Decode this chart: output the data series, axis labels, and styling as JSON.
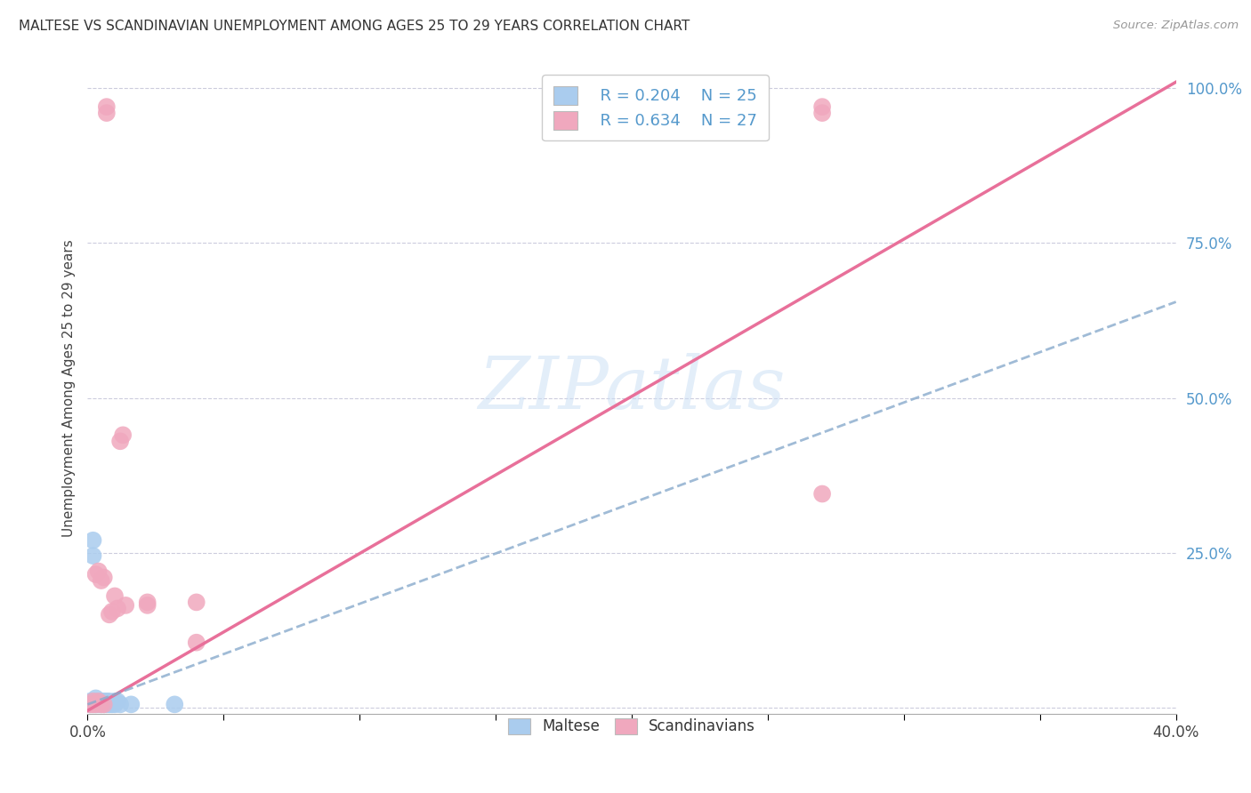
{
  "title": "MALTESE VS SCANDINAVIAN UNEMPLOYMENT AMONG AGES 25 TO 29 YEARS CORRELATION CHART",
  "source": "Source: ZipAtlas.com",
  "ylabel": "Unemployment Among Ages 25 to 29 years",
  "legend_r_maltese": "R = 0.204",
  "legend_n_maltese": "N = 25",
  "legend_r_scand": "R = 0.634",
  "legend_n_scand": "N = 27",
  "maltese_color": "#aaccee",
  "scand_color": "#f0a8be",
  "maltese_line_color": "#88aacc",
  "scand_line_color": "#e8709a",
  "axis_label_color": "#5599cc",
  "watermark_color": "#cce0f5",
  "xlim": [
    0.0,
    0.4
  ],
  "ylim": [
    -0.01,
    1.04
  ],
  "maltese_x": [
    0.001,
    0.001,
    0.002,
    0.002,
    0.002,
    0.003,
    0.003,
    0.003,
    0.004,
    0.004,
    0.005,
    0.005,
    0.006,
    0.006,
    0.007,
    0.007,
    0.008,
    0.008,
    0.009,
    0.01,
    0.01,
    0.011,
    0.012,
    0.016,
    0.032
  ],
  "maltese_y": [
    0.005,
    0.01,
    0.005,
    0.245,
    0.27,
    0.005,
    0.01,
    0.015,
    0.005,
    0.01,
    0.005,
    0.01,
    0.005,
    0.01,
    0.005,
    0.01,
    0.005,
    0.01,
    0.005,
    0.005,
    0.01,
    0.01,
    0.005,
    0.005,
    0.005
  ],
  "scand_x": [
    0.001,
    0.002,
    0.002,
    0.003,
    0.003,
    0.004,
    0.004,
    0.005,
    0.005,
    0.006,
    0.006,
    0.007,
    0.007,
    0.008,
    0.009,
    0.01,
    0.011,
    0.012,
    0.013,
    0.014,
    0.022,
    0.022,
    0.04,
    0.04,
    0.27,
    0.27,
    0.27
  ],
  "scand_y": [
    0.005,
    0.005,
    0.01,
    0.005,
    0.215,
    0.01,
    0.22,
    0.005,
    0.205,
    0.005,
    0.21,
    0.97,
    0.96,
    0.15,
    0.155,
    0.18,
    0.16,
    0.43,
    0.44,
    0.165,
    0.165,
    0.17,
    0.17,
    0.105,
    0.345,
    0.96,
    0.97
  ],
  "pink_trend_x0": 0.0,
  "pink_trend_y0": -0.005,
  "pink_trend_x1": 0.4,
  "pink_trend_y1": 1.01,
  "blue_trend_x0": 0.0,
  "blue_trend_y0": 0.005,
  "blue_trend_x1": 0.4,
  "blue_trend_y1": 0.655
}
